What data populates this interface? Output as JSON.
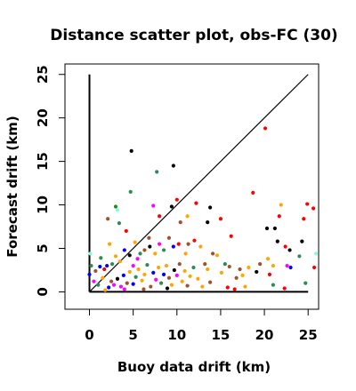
{
  "chart_data": {
    "type": "scatter",
    "title": "Distance scatter plot, obs-FC (30)",
    "xlabel": "Buoy data drift (km)",
    "ylabel": "Forecast drift (km)",
    "xlim": [
      -2.8,
      26.2
    ],
    "ylim": [
      -2.0,
      26.2
    ],
    "xticks": [
      0,
      5,
      10,
      15,
      20,
      25
    ],
    "yticks": [
      0,
      5,
      10,
      15,
      20,
      25
    ],
    "grid": false,
    "reference_lines": [
      {
        "name": "1:1 line",
        "x": [
          0,
          25
        ],
        "y": [
          0,
          25
        ]
      },
      {
        "name": "y-axis stem",
        "x": [
          0,
          0
        ],
        "y": [
          0,
          25
        ]
      },
      {
        "name": "x-axis stem",
        "x": [
          0,
          25
        ],
        "y": [
          0,
          0
        ]
      }
    ],
    "points": [
      {
        "x": 4.8,
        "y": 16.2,
        "color": "#000000"
      },
      {
        "x": 9.6,
        "y": 14.5,
        "color": "#000000"
      },
      {
        "x": 7.7,
        "y": 13.8,
        "color": "#2e8b57"
      },
      {
        "x": 4.7,
        "y": 11.5,
        "color": "#2e8b57"
      },
      {
        "x": 20.1,
        "y": 18.8,
        "color": "#ff0000"
      },
      {
        "x": 18.7,
        "y": 11.4,
        "color": "#ff0000"
      },
      {
        "x": 10.0,
        "y": 10.6,
        "color": "#ff0000"
      },
      {
        "x": 12.2,
        "y": 10.2,
        "color": "#ff0000"
      },
      {
        "x": 9.4,
        "y": 9.8,
        "color": "#000000"
      },
      {
        "x": 13.8,
        "y": 9.7,
        "color": "#000000"
      },
      {
        "x": 7.3,
        "y": 9.9,
        "color": "#ff00ff"
      },
      {
        "x": 3.2,
        "y": 9.4,
        "color": "#7fffd4"
      },
      {
        "x": 3.0,
        "y": 9.8,
        "color": "#228b22"
      },
      {
        "x": 8.0,
        "y": 8.7,
        "color": "#ff0000"
      },
      {
        "x": 2.1,
        "y": 8.4,
        "color": "#a0522d"
      },
      {
        "x": 3.4,
        "y": 7.9,
        "color": "#2e8b57"
      },
      {
        "x": 4.2,
        "y": 7.0,
        "color": "#ff0000"
      },
      {
        "x": 10.4,
        "y": 8.0,
        "color": "#a0522d"
      },
      {
        "x": 11.2,
        "y": 8.7,
        "color": "#ffa500"
      },
      {
        "x": 15.0,
        "y": 8.4,
        "color": "#ff0000"
      },
      {
        "x": 13.5,
        "y": 8.0,
        "color": "#000000"
      },
      {
        "x": 16.2,
        "y": 6.4,
        "color": "#ff0000"
      },
      {
        "x": 20.3,
        "y": 7.3,
        "color": "#000000"
      },
      {
        "x": 21.2,
        "y": 7.3,
        "color": "#000000"
      },
      {
        "x": 21.7,
        "y": 8.7,
        "color": "#ff0000"
      },
      {
        "x": 21.9,
        "y": 10.0,
        "color": "#ffa500"
      },
      {
        "x": 24.5,
        "y": 8.4,
        "color": "#ff0000"
      },
      {
        "x": 24.9,
        "y": 10.1,
        "color": "#ff0000"
      },
      {
        "x": 25.6,
        "y": 9.6,
        "color": "#ff0000"
      },
      {
        "x": 21.5,
        "y": 5.8,
        "color": "#000000"
      },
      {
        "x": 22.4,
        "y": 5.2,
        "color": "#ff0000"
      },
      {
        "x": 24.3,
        "y": 5.8,
        "color": "#000000"
      },
      {
        "x": 24.0,
        "y": 4.1,
        "color": "#2e8b57"
      },
      {
        "x": 22.9,
        "y": 4.8,
        "color": "#000000"
      },
      {
        "x": 25.9,
        "y": 4.4,
        "color": "#7fffd4"
      },
      {
        "x": 25.7,
        "y": 2.8,
        "color": "#ff0000"
      },
      {
        "x": 22.6,
        "y": 3.0,
        "color": "#ff00ff"
      },
      {
        "x": 23.0,
        "y": 2.8,
        "color": "#0000ff"
      },
      {
        "x": 21.0,
        "y": 3.0,
        "color": "#ffa500"
      },
      {
        "x": 20.4,
        "y": 3.8,
        "color": "#ffa500"
      },
      {
        "x": 19.5,
        "y": 3.2,
        "color": "#a0522d"
      },
      {
        "x": 19.1,
        "y": 2.3,
        "color": "#000000"
      },
      {
        "x": 20.6,
        "y": 2.0,
        "color": "#ff0000"
      },
      {
        "x": 18.2,
        "y": 2.8,
        "color": "#ffa500"
      },
      {
        "x": 17.2,
        "y": 2.6,
        "color": "#a0522d"
      },
      {
        "x": 16.8,
        "y": 1.6,
        "color": "#a0522d"
      },
      {
        "x": 15.5,
        "y": 3.2,
        "color": "#2e8b57"
      },
      {
        "x": 14.6,
        "y": 4.2,
        "color": "#ffa500"
      },
      {
        "x": 14.1,
        "y": 4.4,
        "color": "#a0522d"
      },
      {
        "x": 13.2,
        "y": 3.2,
        "color": "#a0522d"
      },
      {
        "x": 13.5,
        "y": 2.6,
        "color": "#ffa500"
      },
      {
        "x": 12.7,
        "y": 5.2,
        "color": "#ffa500"
      },
      {
        "x": 12.0,
        "y": 5.9,
        "color": "#ff0000"
      },
      {
        "x": 11.3,
        "y": 5.5,
        "color": "#a0522d"
      },
      {
        "x": 11.0,
        "y": 4.4,
        "color": "#ffa500"
      },
      {
        "x": 10.2,
        "y": 5.5,
        "color": "#ff0000"
      },
      {
        "x": 9.6,
        "y": 5.2,
        "color": "#0000ff"
      },
      {
        "x": 9.1,
        "y": 6.2,
        "color": "#a0522d"
      },
      {
        "x": 8.5,
        "y": 4.8,
        "color": "#2e8b57"
      },
      {
        "x": 8.0,
        "y": 5.5,
        "color": "#ff00ff"
      },
      {
        "x": 7.5,
        "y": 4.4,
        "color": "#ffa500"
      },
      {
        "x": 6.9,
        "y": 5.2,
        "color": "#000000"
      },
      {
        "x": 6.3,
        "y": 4.8,
        "color": "#a0522d"
      },
      {
        "x": 5.8,
        "y": 4.4,
        "color": "#2e8b57"
      },
      {
        "x": 5.5,
        "y": 3.8,
        "color": "#ff00ff"
      },
      {
        "x": 5.2,
        "y": 5.7,
        "color": "#ffa500"
      },
      {
        "x": 4.6,
        "y": 4.2,
        "color": "#000000"
      },
      {
        "x": 4.0,
        "y": 4.8,
        "color": "#0000ff"
      },
      {
        "x": 3.5,
        "y": 3.5,
        "color": "#ffa500"
      },
      {
        "x": 3.0,
        "y": 4.1,
        "color": "#ffa500"
      },
      {
        "x": 2.6,
        "y": 3.2,
        "color": "#2e8b57"
      },
      {
        "x": 2.0,
        "y": 3.0,
        "color": "#0000ff"
      },
      {
        "x": 1.7,
        "y": 2.6,
        "color": "#ff0000"
      },
      {
        "x": 1.2,
        "y": 2.9,
        "color": "#0000ff"
      },
      {
        "x": 0.7,
        "y": 2.4,
        "color": "#a0522d"
      },
      {
        "x": 0.1,
        "y": 4.4,
        "color": "#7fffd4"
      },
      {
        "x": 0.2,
        "y": 3.0,
        "color": "#2e8b57"
      },
      {
        "x": 0.0,
        "y": 2.0,
        "color": "#0000ff"
      },
      {
        "x": 0.5,
        "y": 1.2,
        "color": "#ff00ff"
      },
      {
        "x": 1.0,
        "y": 0.8,
        "color": "#2e8b57"
      },
      {
        "x": 1.5,
        "y": 1.6,
        "color": "#ffa500"
      },
      {
        "x": 2.2,
        "y": 0.5,
        "color": "#0000ff"
      },
      {
        "x": 2.5,
        "y": 1.2,
        "color": "#a0522d"
      },
      {
        "x": 2.8,
        "y": 0.8,
        "color": "#ff00ff"
      },
      {
        "x": 3.2,
        "y": 1.5,
        "color": "#000000"
      },
      {
        "x": 3.6,
        "y": 0.6,
        "color": "#ff00ff"
      },
      {
        "x": 3.9,
        "y": 1.9,
        "color": "#0000ff"
      },
      {
        "x": 4.3,
        "y": 1.0,
        "color": "#a0522d"
      },
      {
        "x": 4.6,
        "y": 2.3,
        "color": "#ffa500"
      },
      {
        "x": 5.0,
        "y": 0.9,
        "color": "#0000ff"
      },
      {
        "x": 5.3,
        "y": 1.7,
        "color": "#2e8b57"
      },
      {
        "x": 5.6,
        "y": 2.6,
        "color": "#ffa500"
      },
      {
        "x": 6.0,
        "y": 1.3,
        "color": "#ffa500"
      },
      {
        "x": 6.3,
        "y": 2.0,
        "color": "#ffa500"
      },
      {
        "x": 6.6,
        "y": 3.1,
        "color": "#2e8b57"
      },
      {
        "x": 7.0,
        "y": 0.6,
        "color": "#a0522d"
      },
      {
        "x": 7.3,
        "y": 2.2,
        "color": "#0000ff"
      },
      {
        "x": 7.6,
        "y": 1.4,
        "color": "#ff00ff"
      },
      {
        "x": 7.9,
        "y": 2.8,
        "color": "#ffa500"
      },
      {
        "x": 8.2,
        "y": 1.0,
        "color": "#2e8b57"
      },
      {
        "x": 8.5,
        "y": 2.0,
        "color": "#0000ff"
      },
      {
        "x": 8.8,
        "y": 3.0,
        "color": "#ffa500"
      },
      {
        "x": 9.1,
        "y": 1.6,
        "color": "#a0522d"
      },
      {
        "x": 9.4,
        "y": 0.8,
        "color": "#ffa500"
      },
      {
        "x": 9.7,
        "y": 2.5,
        "color": "#000000"
      },
      {
        "x": 10.0,
        "y": 1.9,
        "color": "#ff00ff"
      },
      {
        "x": 10.3,
        "y": 3.2,
        "color": "#a0522d"
      },
      {
        "x": 10.6,
        "y": 1.2,
        "color": "#ffa500"
      },
      {
        "x": 10.9,
        "y": 2.4,
        "color": "#ffa500"
      },
      {
        "x": 11.2,
        "y": 0.7,
        "color": "#a0522d"
      },
      {
        "x": 11.5,
        "y": 1.8,
        "color": "#ffa500"
      },
      {
        "x": 11.9,
        "y": 2.8,
        "color": "#2e8b57"
      },
      {
        "x": 12.4,
        "y": 1.5,
        "color": "#ffa500"
      },
      {
        "x": 15.8,
        "y": 0.5,
        "color": "#ff0000"
      },
      {
        "x": 16.6,
        "y": 0.3,
        "color": "#ff0000"
      },
      {
        "x": 17.8,
        "y": 0.6,
        "color": "#ffa500"
      },
      {
        "x": 21.0,
        "y": 0.8,
        "color": "#2e8b57"
      },
      {
        "x": 6.2,
        "y": 0.3,
        "color": "#a0522d"
      },
      {
        "x": 8.9,
        "y": 0.4,
        "color": "#000000"
      },
      {
        "x": 4.0,
        "y": 0.3,
        "color": "#ff00ff"
      },
      {
        "x": 1.8,
        "y": 0.2,
        "color": "#ffa500"
      },
      {
        "x": 12.9,
        "y": 0.6,
        "color": "#ffa500"
      },
      {
        "x": 13.8,
        "y": 1.1,
        "color": "#a0522d"
      },
      {
        "x": 15.1,
        "y": 2.2,
        "color": "#ffa500"
      },
      {
        "x": 16.0,
        "y": 2.9,
        "color": "#a0522d"
      },
      {
        "x": 17.5,
        "y": 1.9,
        "color": "#ffa500"
      },
      {
        "x": 22.3,
        "y": 0.4,
        "color": "#ff0000"
      },
      {
        "x": 24.7,
        "y": 1.0,
        "color": "#2e8b57"
      },
      {
        "x": 6.8,
        "y": 6.2,
        "color": "#a0522d"
      },
      {
        "x": 2.3,
        "y": 5.5,
        "color": "#ffa500"
      },
      {
        "x": 1.3,
        "y": 3.9,
        "color": "#2e8b57"
      },
      {
        "x": 5.0,
        "y": 3.0,
        "color": "#ff00ff"
      }
    ]
  }
}
